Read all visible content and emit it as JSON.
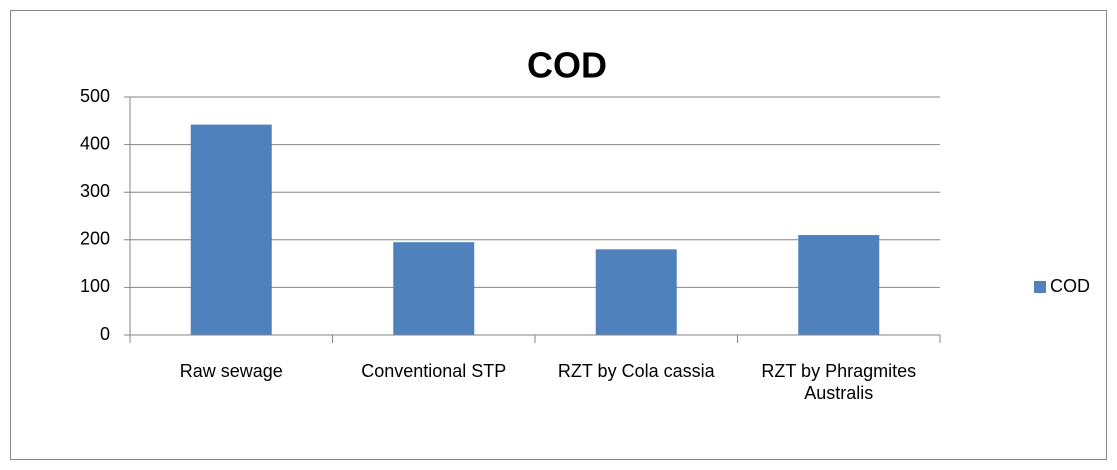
{
  "chart_data": {
    "type": "bar",
    "title": "COD",
    "categories": [
      "Raw sewage",
      "Conventional STP",
      "RZT by Cola cassia",
      "RZT by Phragmites Australis"
    ],
    "series": [
      {
        "name": "COD",
        "color": "#4f81bd",
        "values": [
          442,
          195,
          180,
          210
        ]
      }
    ],
    "ylim": [
      0,
      500
    ],
    "yticks": [
      0,
      100,
      200,
      300,
      400,
      500
    ],
    "grid": true,
    "legend": "right"
  }
}
